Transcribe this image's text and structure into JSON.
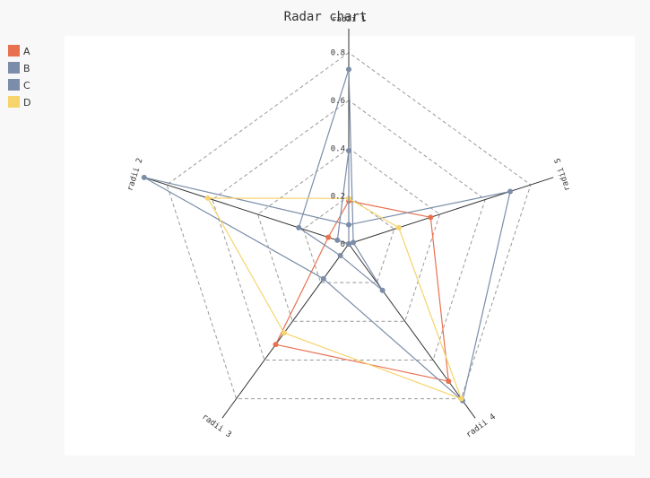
{
  "chart_data": {
    "type": "radar",
    "title": "Radar chart",
    "axes": [
      "radii 1",
      "radii 2",
      "radii 3",
      "radii 4",
      "radii 5"
    ],
    "rlim": [
      0,
      0.9
    ],
    "ticks": [
      0,
      0.2,
      0.4,
      0.6,
      0.8
    ],
    "tick_labels": [
      "0",
      "0.2",
      "0.4",
      "0.6",
      "0.8"
    ],
    "grid": true,
    "legend_position": "top-left",
    "series": [
      {
        "name": "A",
        "color": "#e8714f",
        "values": [
          0.18,
          0.09,
          0.52,
          0.71,
          0.36
        ]
      },
      {
        "name": "B",
        "color": "#7b8da8",
        "values": [
          0.08,
          0.9,
          0.18,
          0.81,
          0.71
        ]
      },
      {
        "name": "C",
        "color": "#7b8da8",
        "values": [
          0.73,
          0.22,
          0.06,
          0.24,
          0.02
        ]
      },
      {
        "name": "D",
        "color": "#f6d36b",
        "values": [
          0.19,
          0.62,
          0.46,
          0.8,
          0.22
        ]
      },
      {
        "name": "",
        "color": "#7b8da8",
        "values": [
          0.39,
          0.05,
          0.0,
          0.0,
          0.0
        ],
        "legend": false
      }
    ]
  }
}
